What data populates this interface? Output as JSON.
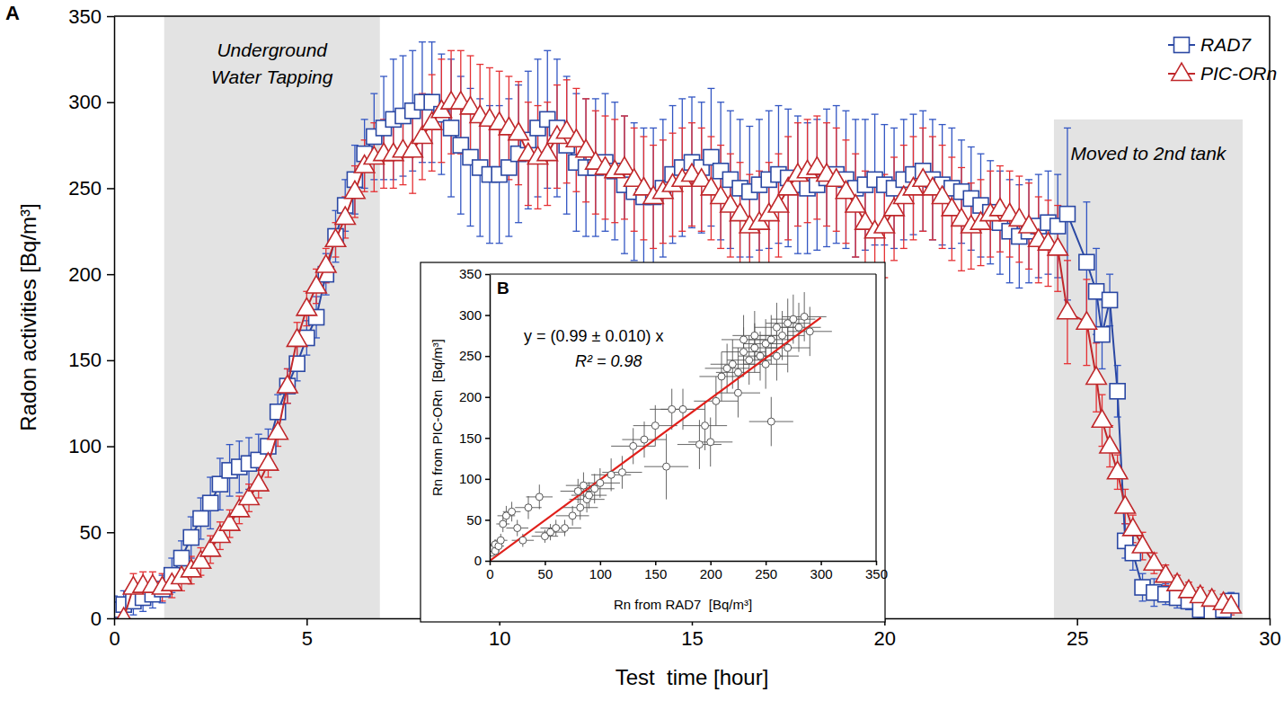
{
  "chart_data": [
    {
      "type": "line",
      "panel": "A",
      "x_label": "Test  time [hour]",
      "y_label": "Radon activities [Bq/m³]",
      "xlim": [
        0,
        30
      ],
      "ylim": [
        0,
        350
      ],
      "xticks": [
        0,
        5,
        10,
        15,
        20,
        25,
        30
      ],
      "yticks": [
        0,
        50,
        100,
        150,
        200,
        250,
        300,
        350
      ],
      "legend": "upper right",
      "regions": [
        {
          "x0": 1.3,
          "x1": 6.9,
          "y1": 350,
          "label": [
            "Underground",
            "Water Tapping"
          ]
        },
        {
          "x0": 24.4,
          "x1": 29.3,
          "y1": 290,
          "label": [
            "Moved to 2nd tank"
          ]
        }
      ],
      "series": [
        {
          "name": "RAD7",
          "color": "#2b48a3",
          "marker": "square",
          "line_style": "solid",
          "x": [
            0,
            0.25,
            0.5,
            0.75,
            1,
            1.25,
            1.5,
            1.75,
            2,
            2.25,
            2.5,
            2.75,
            3,
            3.25,
            3.5,
            3.75,
            4,
            4.25,
            4.5,
            4.75,
            5,
            5.25,
            5.5,
            5.75,
            6,
            6.25,
            6.5,
            6.75,
            7,
            7.25,
            7.5,
            7.75,
            8,
            8.25,
            8.5,
            8.75,
            9,
            9.25,
            9.5,
            9.75,
            10,
            10.25,
            10.5,
            10.75,
            11,
            11.25,
            11.5,
            11.75,
            12,
            12.25,
            12.5,
            12.75,
            13,
            13.25,
            13.5,
            13.75,
            14,
            14.25,
            14.5,
            14.75,
            15,
            15.25,
            15.5,
            15.75,
            16,
            16.25,
            16.5,
            16.75,
            17,
            17.25,
            17.5,
            17.75,
            18,
            18.25,
            18.5,
            18.75,
            19,
            19.25,
            19.5,
            19.75,
            20,
            20.25,
            20.5,
            20.75,
            21,
            21.25,
            21.5,
            21.75,
            22,
            22.25,
            22.5,
            22.75,
            23,
            23.25,
            23.5,
            23.75,
            24,
            24.25,
            24.5,
            24.75,
            25.25,
            25.5,
            25.65,
            25.85,
            26.05,
            26.25,
            26.45,
            26.7,
            27,
            27.3,
            27.6,
            27.9,
            28.2,
            28.5,
            28.8,
            29
          ],
          "values": [
            5,
            8,
            10,
            12,
            14,
            17,
            25,
            35,
            47,
            58,
            67,
            78,
            86,
            88,
            90,
            92,
            100,
            120,
            135,
            148,
            163,
            175,
            200,
            222,
            240,
            255,
            270,
            280,
            285,
            290,
            292,
            295,
            300,
            300,
            293,
            285,
            275,
            268,
            262,
            258,
            258,
            262,
            270,
            278,
            285,
            290,
            285,
            275,
            265,
            262,
            262,
            265,
            260,
            252,
            248,
            245,
            245,
            250,
            258,
            262,
            265,
            262,
            268,
            260,
            255,
            250,
            248,
            252,
            255,
            258,
            256,
            252,
            250,
            252,
            256,
            258,
            255,
            250,
            252,
            255,
            252,
            250,
            255,
            258,
            260,
            255,
            252,
            250,
            248,
            244,
            240,
            236,
            230,
            225,
            222,
            225,
            228,
            230,
            228,
            235,
            207,
            190,
            165,
            185,
            132,
            45,
            38,
            18,
            15,
            14,
            12,
            10,
            5,
            3,
            5,
            10
          ],
          "errors": [
            8,
            8,
            8,
            8,
            8,
            8,
            10,
            10,
            12,
            12,
            15,
            15,
            15,
            15,
            15,
            15,
            10,
            10,
            10,
            10,
            10,
            12,
            12,
            15,
            15,
            20,
            20,
            25,
            30,
            35,
            35,
            35,
            35,
            35,
            35,
            40,
            40,
            40,
            40,
            40,
            40,
            40,
            40,
            40,
            40,
            40,
            40,
            40,
            40,
            40,
            40,
            40,
            40,
            40,
            40,
            40,
            40,
            40,
            40,
            40,
            38,
            38,
            40,
            40,
            40,
            40,
            38,
            38,
            40,
            40,
            40,
            40,
            38,
            38,
            40,
            40,
            40,
            40,
            38,
            38,
            35,
            35,
            35,
            35,
            35,
            35,
            35,
            35,
            30,
            30,
            30,
            30,
            30,
            30,
            30,
            30,
            30,
            30,
            30,
            50,
            35,
            25,
            20,
            15,
            15,
            10,
            10,
            8,
            8,
            6,
            6,
            5,
            5,
            5,
            5,
            5
          ]
        },
        {
          "name": "PIC-ORn",
          "color": "#c0282b",
          "marker": "triangle",
          "line_style": "solid",
          "x": [
            0.25,
            0.5,
            0.75,
            1,
            1.25,
            1.5,
            1.75,
            2,
            2.25,
            2.5,
            2.75,
            3,
            3.25,
            3.5,
            3.75,
            4,
            4.25,
            4.5,
            4.75,
            5,
            5.25,
            5.5,
            5.75,
            6,
            6.25,
            6.5,
            6.75,
            7,
            7.25,
            7.5,
            7.75,
            8,
            8.25,
            8.5,
            8.75,
            9,
            9.25,
            9.5,
            9.75,
            10,
            10.25,
            10.5,
            10.75,
            11,
            11.25,
            11.5,
            11.75,
            12,
            12.25,
            12.5,
            12.75,
            13,
            13.25,
            13.5,
            13.75,
            14,
            14.25,
            14.5,
            14.75,
            15,
            15.25,
            15.5,
            15.75,
            16,
            16.25,
            16.5,
            16.75,
            17,
            17.25,
            17.5,
            17.75,
            18,
            18.25,
            18.5,
            18.75,
            19,
            19.25,
            19.5,
            19.75,
            20,
            20.25,
            20.5,
            20.75,
            21,
            21.25,
            21.5,
            21.75,
            22,
            22.25,
            22.5,
            22.75,
            23,
            23.25,
            23.5,
            23.75,
            24,
            24.25,
            24.5,
            24.75,
            25.25,
            25.5,
            25.65,
            25.85,
            26.05,
            26.25,
            26.45,
            26.7,
            27,
            27.3,
            27.6,
            27.9,
            28.2,
            28.5,
            28.8,
            29
          ],
          "values": [
            0,
            18,
            19,
            19,
            18,
            20,
            24,
            28,
            33,
            40,
            48,
            55,
            63,
            70,
            78,
            90,
            108,
            135,
            162,
            180,
            193,
            205,
            220,
            233,
            248,
            263,
            268,
            270,
            270,
            272,
            272,
            280,
            288,
            295,
            300,
            300,
            297,
            292,
            290,
            288,
            285,
            282,
            270,
            268,
            270,
            280,
            283,
            278,
            272,
            265,
            262,
            260,
            262,
            255,
            250,
            245,
            248,
            252,
            255,
            258,
            255,
            250,
            245,
            240,
            235,
            228,
            230,
            235,
            240,
            250,
            258,
            260,
            262,
            258,
            255,
            248,
            240,
            230,
            225,
            228,
            238,
            245,
            250,
            255,
            250,
            245,
            238,
            232,
            228,
            230,
            235,
            238,
            235,
            232,
            228,
            220,
            218,
            215,
            178,
            172,
            140,
            115,
            100,
            85,
            65,
            52,
            42,
            32,
            25,
            20,
            16,
            13,
            11,
            9,
            7
          ],
          "errors": [
            8,
            8,
            8,
            8,
            8,
            8,
            8,
            8,
            8,
            8,
            8,
            8,
            8,
            8,
            8,
            8,
            8,
            10,
            10,
            10,
            10,
            10,
            10,
            12,
            15,
            15,
            20,
            20,
            20,
            20,
            25,
            25,
            28,
            30,
            30,
            30,
            30,
            30,
            30,
            30,
            30,
            30,
            30,
            30,
            30,
            30,
            30,
            30,
            30,
            30,
            30,
            30,
            30,
            30,
            30,
            30,
            30,
            30,
            30,
            30,
            30,
            30,
            30,
            30,
            30,
            30,
            30,
            30,
            30,
            30,
            30,
            30,
            30,
            30,
            30,
            30,
            30,
            30,
            30,
            30,
            30,
            30,
            30,
            30,
            30,
            30,
            30,
            30,
            25,
            25,
            25,
            25,
            25,
            25,
            25,
            25,
            25,
            25,
            30,
            25,
            20,
            15,
            12,
            10,
            10,
            8,
            8,
            6,
            6,
            5,
            5,
            5,
            5,
            5,
            5
          ]
        }
      ]
    },
    {
      "type": "scatter",
      "panel": "B",
      "x_label": "Rn from RAD7  [Bq/m³]",
      "y_label": "Rn from PIC-ORn  [Bq/m³]",
      "xlim": [
        0,
        350
      ],
      "ylim": [
        0,
        350
      ],
      "xticks": [
        0,
        50,
        100,
        150,
        200,
        250,
        300,
        350
      ],
      "yticks": [
        0,
        50,
        100,
        150,
        200,
        250,
        300,
        350
      ],
      "color": "#555555",
      "marker": "circle",
      "x": [
        2,
        3,
        5,
        5,
        8,
        10,
        12,
        15,
        20,
        25,
        30,
        35,
        45,
        50,
        55,
        60,
        68,
        75,
        80,
        82,
        85,
        88,
        90,
        95,
        100,
        110,
        120,
        130,
        140,
        150,
        160,
        165,
        175,
        190,
        195,
        200,
        205,
        210,
        215,
        220,
        225,
        230,
        235,
        240,
        245,
        250,
        255,
        260,
        265,
        270,
        275,
        280,
        285,
        290,
        240,
        250,
        260,
        230,
        270,
        225,
        255
      ],
      "y": [
        10,
        15,
        12,
        20,
        18,
        25,
        45,
        55,
        60,
        40,
        25,
        65,
        78,
        30,
        35,
        40,
        40,
        55,
        85,
        65,
        92,
        75,
        80,
        88,
        95,
        105,
        108,
        140,
        148,
        165,
        115,
        185,
        185,
        142,
        165,
        145,
        195,
        225,
        235,
        240,
        230,
        255,
        245,
        260,
        250,
        265,
        270,
        285,
        275,
        290,
        295,
        285,
        298,
        280,
        275,
        240,
        250,
        270,
        260,
        205,
        170
      ],
      "x_error": [
        3,
        3,
        4,
        4,
        5,
        6,
        6,
        8,
        8,
        10,
        10,
        12,
        12,
        12,
        14,
        14,
        15,
        15,
        16,
        16,
        16,
        16,
        16,
        18,
        18,
        18,
        18,
        20,
        20,
        20,
        20,
        20,
        20,
        20,
        20,
        20,
        20,
        20,
        20,
        20,
        20,
        20,
        20,
        20,
        20,
        20,
        20,
        20,
        20,
        20,
        20,
        20,
        20,
        20,
        20,
        20,
        20,
        20,
        20,
        20,
        20
      ],
      "y_error": [
        4,
        5,
        5,
        6,
        6,
        8,
        10,
        12,
        12,
        10,
        8,
        14,
        15,
        8,
        10,
        10,
        10,
        12,
        15,
        15,
        16,
        16,
        16,
        18,
        18,
        20,
        20,
        22,
        22,
        25,
        40,
        25,
        25,
        30,
        30,
        30,
        30,
        30,
        30,
        30,
        30,
        30,
        30,
        30,
        30,
        30,
        30,
        30,
        30,
        30,
        30,
        30,
        30,
        30,
        30,
        30,
        30,
        30,
        30,
        30,
        30
      ],
      "fit": {
        "equation": "y = (0.99 ± 0.010) x",
        "r_squared_label": "R² = 0.98",
        "slope": 0.99,
        "x_range": [
          0,
          300
        ],
        "color": "#e0201b"
      }
    }
  ]
}
